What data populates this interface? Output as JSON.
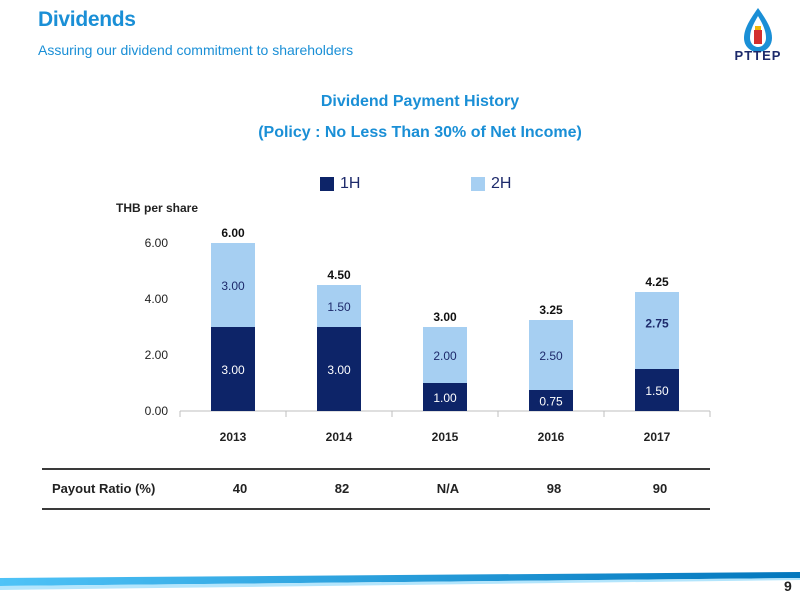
{
  "header": {
    "title": "Dividends",
    "subtitle": "Assuring our dividend commitment to shareholders",
    "logo_text": "PTTEP"
  },
  "chart_data": {
    "type": "bar",
    "stacked": true,
    "title": "Dividend Payment History",
    "subtitle": "(Policy : No Less Than 30% of Net Income)",
    "ylabel": "THB per share",
    "categories": [
      "2013",
      "2014",
      "2015",
      "2016",
      "2017"
    ],
    "series": [
      {
        "name": "1H",
        "values": [
          3.0,
          3.0,
          1.0,
          0.75,
          1.5
        ],
        "labels": [
          "3.00",
          "3.00",
          "1.00",
          "0.75",
          "1.50"
        ],
        "color": "#0d2468"
      },
      {
        "name": "2H",
        "values": [
          3.0,
          1.5,
          2.0,
          2.5,
          2.75
        ],
        "labels": [
          "3.00",
          "1.50",
          "2.00",
          "2.50",
          "2.75"
        ],
        "color": "#a6cff2"
      }
    ],
    "totals": [
      "6.00",
      "4.50",
      "3.00",
      "3.25",
      "4.25"
    ],
    "ylim": [
      0,
      6.5
    ],
    "yticks": [
      0,
      2,
      4,
      6
    ],
    "ytick_labels": [
      "0.00",
      "2.00",
      "4.00",
      "6.00"
    ],
    "grid": false,
    "legend": "top"
  },
  "payout": {
    "label": "Payout Ratio (%)",
    "values": [
      "40",
      "82",
      "N/A",
      "98",
      "90"
    ]
  },
  "page_number": "9"
}
